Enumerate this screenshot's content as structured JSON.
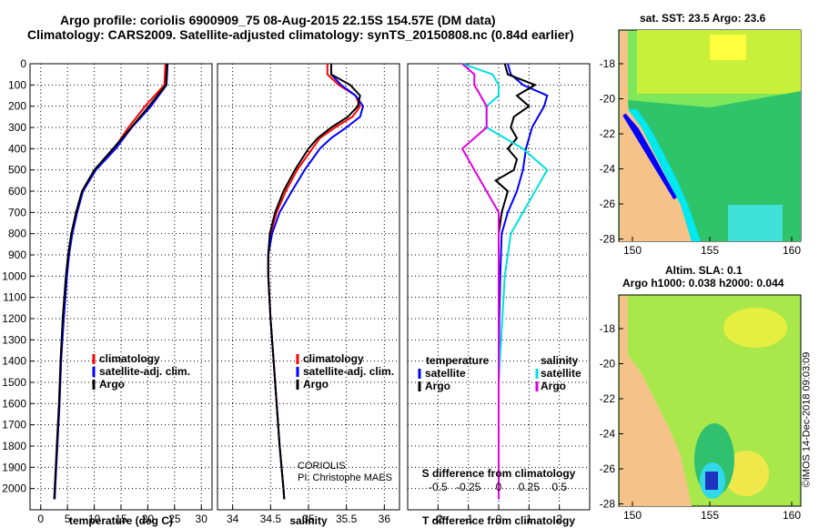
{
  "header": {
    "line1": "Argo profile: coriolis 6900909_75 08-Aug-2015 22.15S 154.57E (DM data)",
    "line2": "Climatology: CARS2009. Satellite-adjusted climatology: synTS_20150808.nc (0.84d earlier)"
  },
  "colors": {
    "climatology": "#ff0000",
    "satellite": "#0000ff",
    "argo": "#000000",
    "sat_salinity": "#00e0e0",
    "argo_salinity": "#e000e0",
    "land": "#f5c38a"
  },
  "chart_data": [
    {
      "type": "line",
      "id": "temperature",
      "xlabel": "temperature (deg C)",
      "ylabel": "",
      "xlim": [
        -2,
        32
      ],
      "ylim": [
        2100,
        0
      ],
      "xticks": [
        0,
        5,
        10,
        15,
        20,
        25,
        30
      ],
      "yticks": [
        0,
        100,
        200,
        300,
        400,
        500,
        600,
        700,
        800,
        900,
        1000,
        1100,
        1200,
        1300,
        1400,
        1500,
        1600,
        1700,
        1800,
        1900,
        2000
      ],
      "legend": [
        "climatology",
        "satellite-adj. clim.",
        "Argo"
      ],
      "series": [
        {
          "name": "climatology",
          "depth": [
            0,
            100,
            200,
            300,
            400,
            500,
            600,
            700,
            800,
            900,
            1000,
            1200,
            1400,
            1600,
            1800,
            2000,
            2050
          ],
          "values": [
            23.3,
            23.1,
            19.5,
            16.4,
            13.7,
            10.1,
            7.8,
            6.6,
            5.8,
            5.2,
            4.8,
            4.2,
            3.8,
            3.5,
            3.1,
            2.7,
            2.6
          ]
        },
        {
          "name": "satellite-adj. clim.",
          "depth": [
            0,
            100,
            200,
            300,
            400,
            500,
            600,
            700,
            800,
            900,
            1000,
            1200,
            1400,
            1600,
            1800,
            2000,
            2050
          ],
          "values": [
            23.7,
            23.5,
            20.6,
            17.0,
            14.0,
            10.3,
            7.9,
            6.8,
            5.9,
            5.3,
            4.9,
            4.3,
            3.8,
            3.5,
            3.1,
            2.7,
            2.6
          ]
        },
        {
          "name": "Argo",
          "depth": [
            0,
            100,
            200,
            300,
            400,
            500,
            600,
            700,
            800,
            900,
            1000,
            1200,
            1400,
            1600,
            1800,
            2000,
            2050
          ],
          "values": [
            23.6,
            23.4,
            20.2,
            16.9,
            13.5,
            10.0,
            7.7,
            6.6,
            5.7,
            5.1,
            4.7,
            4.1,
            3.7,
            3.4,
            3.0,
            2.6,
            2.5
          ]
        }
      ]
    },
    {
      "type": "line",
      "id": "salinity",
      "xlabel": "salinity",
      "xlim": [
        33.8,
        36.2
      ],
      "ylim": [
        2100,
        0
      ],
      "xticks": [
        34,
        34.5,
        35,
        35.5,
        36
      ],
      "legend": [
        "climatology",
        "satellite-adj. clim.",
        "Argo"
      ],
      "series": [
        {
          "name": "climatology",
          "depth": [
            0,
            50,
            100,
            150,
            200,
            250,
            300,
            350,
            400,
            500,
            600,
            700,
            800,
            900,
            1000,
            1200,
            1400,
            1600,
            1800,
            2000,
            2050
          ],
          "values": [
            35.25,
            35.25,
            35.4,
            35.62,
            35.68,
            35.58,
            35.35,
            35.15,
            35.05,
            34.85,
            34.7,
            34.58,
            34.5,
            34.47,
            34.47,
            34.5,
            34.54,
            34.58,
            34.62,
            34.67,
            34.68
          ]
        },
        {
          "name": "satellite-adj. clim.",
          "depth": [
            0,
            50,
            100,
            150,
            200,
            250,
            300,
            350,
            400,
            500,
            600,
            700,
            800,
            900,
            1000,
            1200,
            1400,
            1600,
            1800,
            2000,
            2050
          ],
          "values": [
            35.3,
            35.3,
            35.43,
            35.62,
            35.72,
            35.68,
            35.5,
            35.3,
            35.15,
            34.95,
            34.78,
            34.62,
            34.52,
            34.47,
            34.47,
            34.5,
            34.54,
            34.58,
            34.62,
            34.67,
            34.68
          ]
        },
        {
          "name": "Argo",
          "depth": [
            0,
            50,
            100,
            150,
            200,
            250,
            300,
            350,
            400,
            500,
            600,
            700,
            800,
            900,
            1000,
            1200,
            1400,
            1600,
            1800,
            2000,
            2050
          ],
          "values": [
            35.3,
            35.3,
            35.55,
            35.68,
            35.65,
            35.52,
            35.3,
            35.12,
            35.0,
            34.82,
            34.67,
            34.56,
            34.49,
            34.47,
            34.47,
            34.5,
            34.54,
            34.58,
            34.62,
            34.67,
            34.68
          ]
        }
      ],
      "annotation": [
        "CORIOLIS",
        "PI: Christophe MAES"
      ]
    },
    {
      "type": "line",
      "id": "difference",
      "xlabel": "T difference from climatology",
      "xlabel2": "S difference from climatology",
      "xlim": [
        -3,
        3
      ],
      "ylim": [
        2100,
        0
      ],
      "xticks": [
        -2,
        -1,
        0,
        1,
        2
      ],
      "xticklabels2": [
        "-0.5",
        "-0.25",
        "0",
        "0.25",
        "0.5"
      ],
      "legend_temperature": {
        "title": "temperature",
        "items": [
          "satellite",
          "Argo"
        ]
      },
      "legend_salinity": {
        "title": "salinity",
        "items": [
          "satellite",
          "Argo"
        ]
      },
      "series": [
        {
          "name": "T satellite",
          "depth": [
            0,
            50,
            100,
            150,
            200,
            250,
            300,
            400,
            500,
            600,
            700,
            800,
            1000,
            1200,
            1500,
            2000,
            2050
          ],
          "values": [
            0.3,
            0.4,
            0.8,
            1.6,
            1.5,
            1.3,
            1.1,
            0.9,
            0.8,
            0.6,
            0.3,
            0.1,
            0.05,
            0.02,
            0.0,
            0.0,
            0.0
          ]
        },
        {
          "name": "T Argo",
          "depth": [
            0,
            50,
            100,
            150,
            200,
            250,
            300,
            350,
            400,
            450,
            500,
            550,
            600,
            700,
            800,
            1000,
            1500,
            2000,
            2050
          ],
          "values": [
            0.2,
            0.3,
            1.2,
            0.6,
            1.0,
            0.5,
            0.4,
            0.6,
            0.3,
            0.6,
            0.5,
            -0.1,
            0.3,
            0.1,
            0.0,
            0.0,
            0.0,
            0.0,
            0.0
          ]
        },
        {
          "name": "S satellite",
          "depth": [
            0,
            50,
            100,
            150,
            200,
            300,
            400,
            500,
            600,
            800,
            1000,
            1500,
            2000,
            2050
          ],
          "values": [
            -0.3,
            -0.05,
            0.0,
            0.0,
            -0.1,
            -0.1,
            0.2,
            0.4,
            0.3,
            0.1,
            0.05,
            0.0,
            0.0,
            0.0
          ]
        },
        {
          "name": "S Argo",
          "depth": [
            0,
            50,
            100,
            200,
            300,
            400,
            500,
            600,
            700,
            800,
            1000,
            1500,
            2000,
            2050
          ],
          "values": [
            -0.3,
            -0.2,
            -0.2,
            -0.1,
            -0.1,
            -0.3,
            -0.2,
            -0.1,
            0.0,
            0.0,
            0.0,
            0.0,
            0.0,
            0.0
          ]
        }
      ]
    }
  ],
  "maps": {
    "sst": {
      "title": "sat. SST: 23.5 Argo: 23.6",
      "xticks": [
        "150",
        "155",
        "160"
      ],
      "yticks": [
        "-18",
        "-20",
        "-22",
        "-24",
        "-26",
        "-28"
      ]
    },
    "sla": {
      "title1": "Altim. SLA: 0.1",
      "title2": "Argo h1000: 0.038 h2000: 0.044",
      "xticks": [
        "150",
        "155",
        "160"
      ],
      "yticks": [
        "-18",
        "-20",
        "-22",
        "-24",
        "-26",
        "-28"
      ]
    }
  },
  "footer": {
    "vertical_stamp": "©IMOS 14-Dec-2018 09:03:09"
  }
}
